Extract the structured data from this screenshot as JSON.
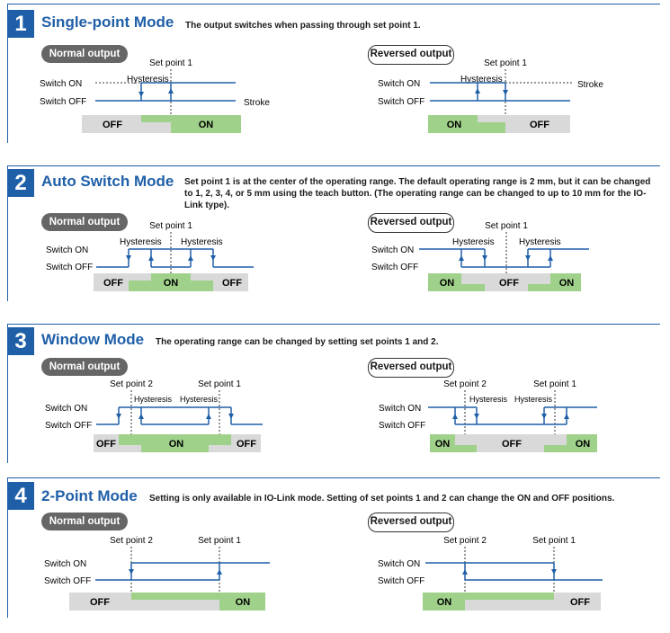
{
  "labels": {
    "normal": "Normal output",
    "reversed": "Reversed output",
    "switch_on": "Switch ON",
    "switch_off": "Switch OFF",
    "hysteresis": "Hysteresis",
    "stroke": "Stroke",
    "sp1": "Set point 1",
    "sp2": "Set point 2",
    "on": "ON",
    "off": "OFF"
  },
  "colors": {
    "accent": "#1f5fa8",
    "line": "#1f5fa8",
    "on": "#9fd18a",
    "off": "#d9d9d9"
  },
  "sections": [
    {
      "number": "1",
      "title": "Single-point Mode",
      "description": "The output switches when passing through set point 1."
    },
    {
      "number": "2",
      "title": "Auto Switch Mode",
      "description": "Set point 1 is at the center of the operating range. The default operating range is 2 mm, but it can be changed to 1, 2, 3, 4, or 5 mm using the teach button. (The operating range can be changed to up to 10 mm for the IO-Link type)."
    },
    {
      "number": "3",
      "title": "Window Mode",
      "description": "The operating range can be changed by setting set points 1 and 2."
    },
    {
      "number": "4",
      "title": "2-Point Mode",
      "description": "Setting is only available in IO-Link mode. Setting of set points 1 and 2 can change the ON and OFF positions."
    }
  ]
}
